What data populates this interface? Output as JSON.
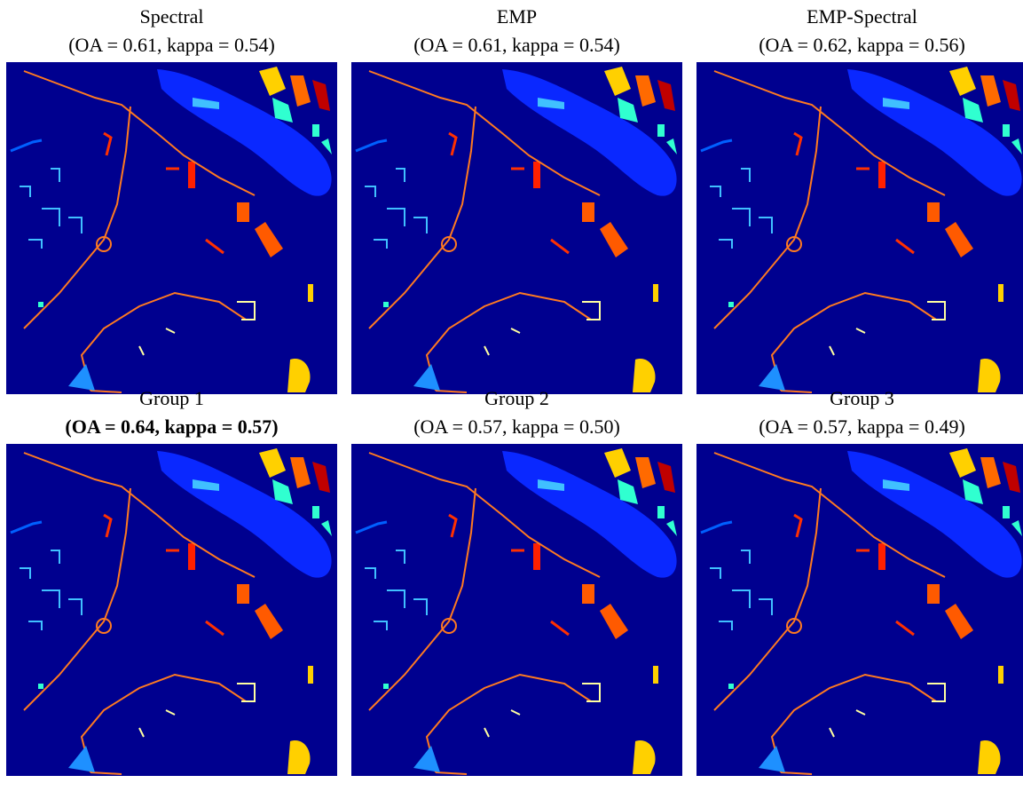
{
  "panels": [
    {
      "title": "Spectral",
      "subtitle": "(OA = 0.61, kappa = 0.54)"
    },
    {
      "title": "EMP",
      "subtitle": "(OA = 0.61, kappa = 0.54)"
    },
    {
      "title": "EMP-Spectral",
      "subtitle": "(OA = 0.62, kappa = 0.56)"
    },
    {
      "title": "Group 1",
      "subtitle": "(OA = 0.64, kappa = 0.57)",
      "bold": true
    },
    {
      "title": "Group 2",
      "subtitle": "(OA = 0.57, kappa = 0.50)"
    },
    {
      "title": "Group 3",
      "subtitle": "(OA = 0.57, kappa = 0.49)"
    }
  ]
}
